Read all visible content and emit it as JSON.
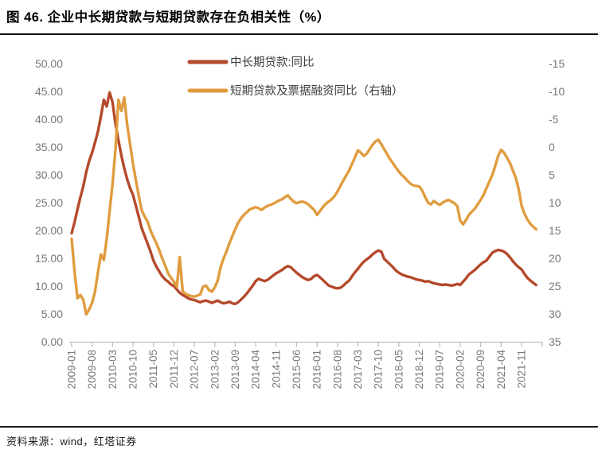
{
  "page": {
    "title": "图 46. 企业中长期贷款与短期贷款存在负相关性（%）",
    "source_note": "资料来源：wind，红塔证券"
  },
  "colors": {
    "medium_long_line": "#B5492B",
    "short_line": "#E09C3E",
    "axis_text": "#787878",
    "axis_line": "#BFBFBF",
    "legend_text": "#3d3d3d",
    "title_text": "#000000"
  },
  "chart_data": {
    "type": "line",
    "title": "图 46. 企业中长期贷款与短期贷款存在负相关性（%）",
    "x_start": "2009-01",
    "x_end": "2022-04",
    "x_freq": "monthly",
    "x_tick_labels": [
      "2009-01",
      "2009-08",
      "2010-03",
      "2010-10",
      "2011-05",
      "2011-12",
      "2012-07",
      "2013-02",
      "2013-09",
      "2014-04",
      "2014-11",
      "2015-06",
      "2016-01",
      "2016-08",
      "2017-03",
      "2017-10",
      "2018-05",
      "2018-12",
      "2019-07",
      "2020-02",
      "2020-09",
      "2021-04",
      "2021-11"
    ],
    "left_axis": {
      "min": 0,
      "max": 50,
      "tick_labels": [
        "50.00",
        "45.00",
        "40.00",
        "35.00",
        "30.00",
        "25.00",
        "20.00",
        "15.00",
        "10.00",
        "5.00",
        "0.00"
      ]
    },
    "right_axis": {
      "min": -15,
      "max": 35,
      "inverted": true,
      "tick_labels": [
        "-15",
        "-10",
        "-5",
        "0",
        "5",
        "10",
        "15",
        "20",
        "25",
        "30",
        "35"
      ]
    },
    "grid": false,
    "legend_position": "top-center",
    "series": [
      {
        "name": "中长期贷款:同比",
        "axis": "left",
        "color": "#B5492B",
        "values": [
          19.5,
          21.5,
          23.8,
          26,
          28,
          30.5,
          32.5,
          34,
          35.8,
          37.8,
          40.5,
          43.5,
          42.3,
          44.8,
          43,
          39.2,
          36.2,
          33.5,
          31.2,
          29.2,
          27.6,
          26.4,
          24.4,
          22.4,
          20.4,
          19,
          17.6,
          16.2,
          14.6,
          13.5,
          12.6,
          11.8,
          11.2,
          10.8,
          10.3,
          10,
          9.4,
          8.8,
          8.4,
          8.1,
          7.8,
          7.6,
          7.5,
          7.3,
          7.1,
          7.3,
          7.4,
          7.2,
          7,
          7.2,
          7.4,
          7.1,
          6.9,
          7,
          7.2,
          6.9,
          6.8,
          7.1,
          7.6,
          8.1,
          8.7,
          9.4,
          10.1,
          10.9,
          11.3,
          11.1,
          10.9,
          11.1,
          11.5,
          11.9,
          12.3,
          12.6,
          12.9,
          13.3,
          13.6,
          13.4,
          12.9,
          12.4,
          12,
          11.6,
          11.3,
          11.1,
          11.3,
          11.8,
          12,
          11.6,
          11.1,
          10.6,
          10.1,
          9.9,
          9.7,
          9.6,
          9.7,
          10.1,
          10.6,
          11,
          11.8,
          12.5,
          13.1,
          13.8,
          14.4,
          14.8,
          15.2,
          15.7,
          16.1,
          16.4,
          16.2,
          14.9,
          14.4,
          13.9,
          13.4,
          12.8,
          12.4,
          12.1,
          11.9,
          11.7,
          11.6,
          11.4,
          11.2,
          11.1,
          11,
          10.8,
          10.9,
          10.7,
          10.5,
          10.4,
          10.3,
          10.2,
          10.3,
          10.2,
          10.1,
          10.2,
          10.4,
          10.2,
          10.8,
          11.4,
          12.1,
          12.5,
          12.9,
          13.4,
          13.9,
          14.3,
          14.6,
          15.3,
          16,
          16.3,
          16.5,
          16.4,
          16.2,
          15.8,
          15.2,
          14.5,
          13.9,
          13.4,
          13,
          12.2,
          11.5,
          11,
          10.6,
          10.2
        ]
      },
      {
        "name": "短期贷款及票据融资同比（右轴）",
        "axis": "right",
        "color": "#E09C3E",
        "values": [
          16.5,
          22.5,
          27.2,
          26.6,
          27.5,
          30.1,
          29.2,
          28,
          26,
          22.5,
          19.3,
          20.3,
          16.5,
          11.5,
          6.5,
          0.5,
          -8.5,
          -6.5,
          -8.9,
          -4,
          -0.5,
          3,
          6,
          8.9,
          11.4,
          12.5,
          13.4,
          15,
          16.2,
          17.3,
          18.6,
          20,
          21.3,
          22.7,
          23.5,
          24.2,
          25.1,
          19.8,
          25.9,
          26.4,
          26.6,
          26.8,
          26.9,
          26.7,
          26.5,
          25.1,
          24.9,
          25.7,
          26,
          25.2,
          24,
          21.6,
          20,
          18.8,
          17.3,
          16,
          14.8,
          13.6,
          12.8,
          12.2,
          11.7,
          11.2,
          11,
          10.8,
          11,
          11.3,
          10.9,
          10.6,
          10.4,
          10.2,
          9.9,
          9.6,
          9.4,
          9,
          8.7,
          9.3,
          9.8,
          10.1,
          9.9,
          9.8,
          10,
          10.3,
          10.8,
          11.3,
          12.2,
          11.5,
          10.8,
          10.2,
          9.8,
          9.4,
          8.8,
          8,
          7,
          6,
          5.1,
          4.2,
          3,
          1.8,
          0.6,
          1,
          1.6,
          1.2,
          0.4,
          -0.4,
          -1,
          -1.3,
          -0.5,
          0.4,
          1.3,
          2.2,
          2.9,
          3.7,
          4.4,
          5,
          5.5,
          6.1,
          6.6,
          6.9,
          7,
          7.1,
          7.8,
          9,
          10,
          10.3,
          9.7,
          10.1,
          10.4,
          10,
          9.7,
          9.5,
          9.8,
          10.1,
          10.6,
          13.2,
          13.9,
          13.1,
          12.2,
          11.6,
          11.1,
          10.3,
          9.5,
          8.6,
          7.4,
          6.2,
          5,
          3.4,
          1.6,
          0.5,
          1,
          1.9,
          2.8,
          4.2,
          5.5,
          7.5,
          10.5,
          12,
          13,
          13.8,
          14.3,
          14.8
        ]
      }
    ]
  }
}
